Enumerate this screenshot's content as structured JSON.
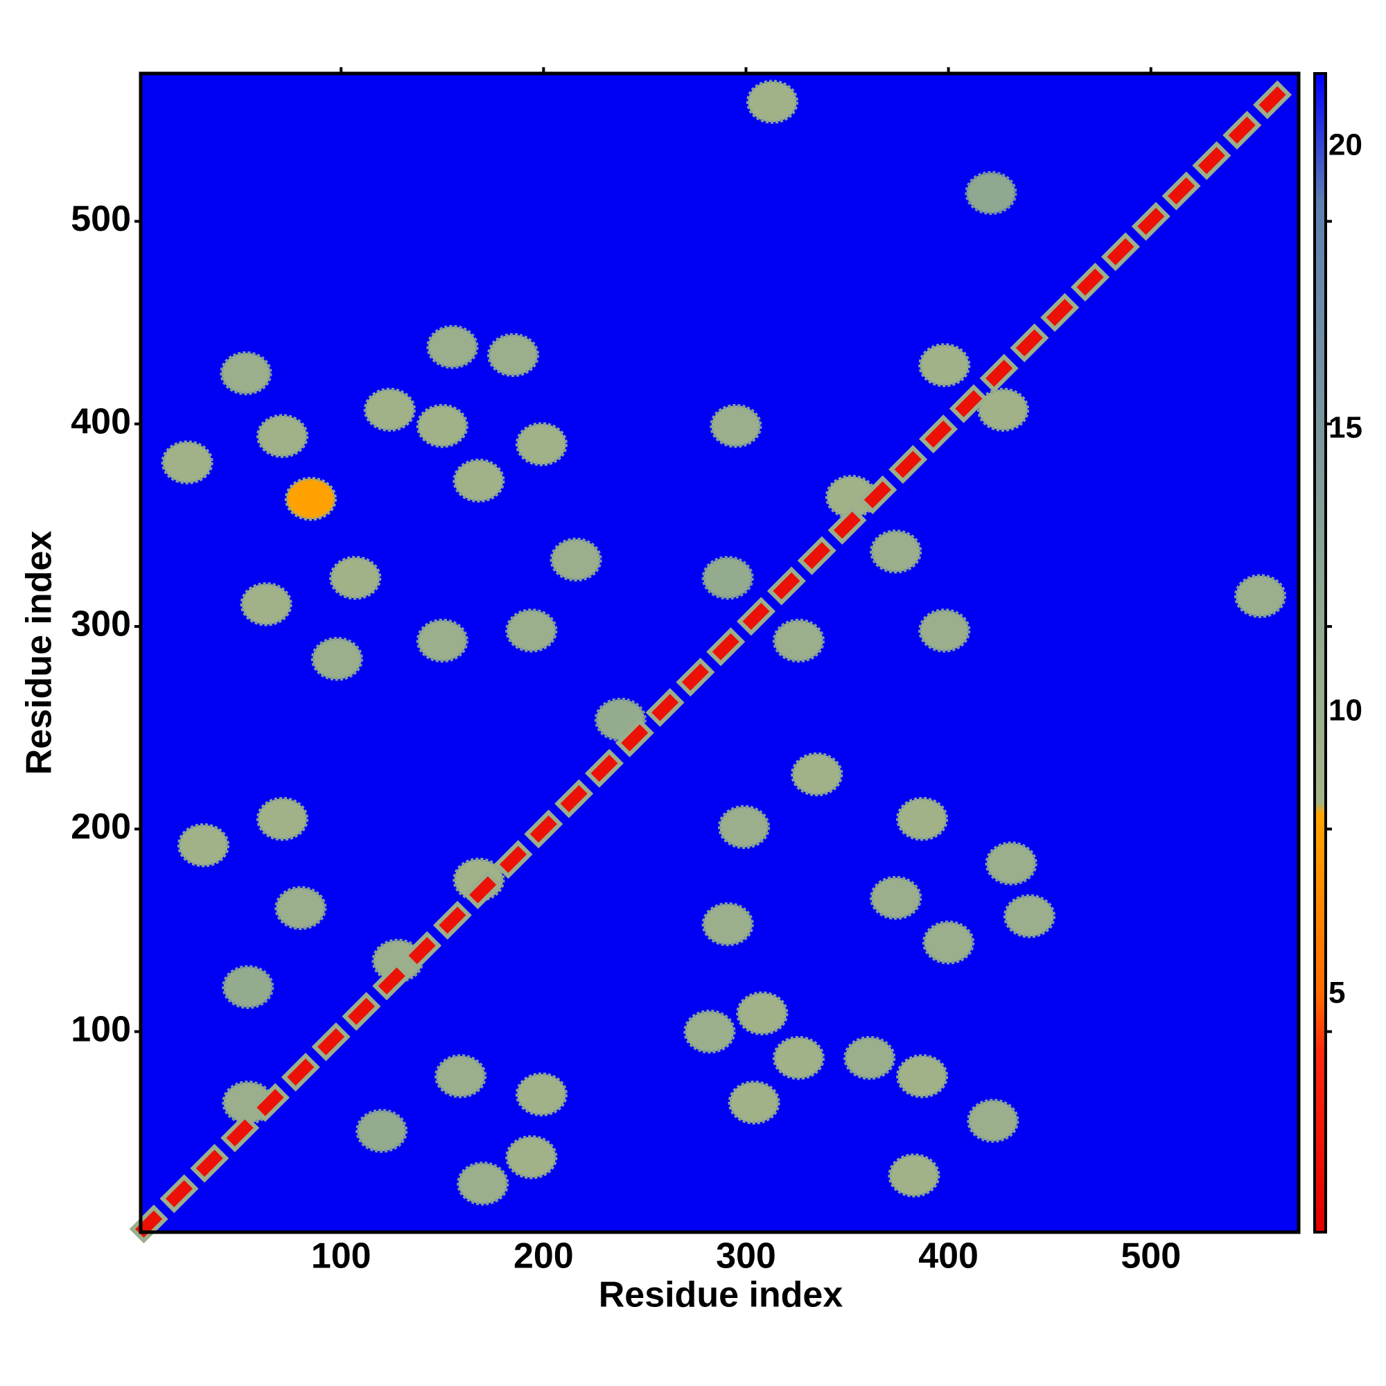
{
  "chart_data": {
    "type": "heatmap",
    "x_label": "Residue index",
    "y_label": "Residue index",
    "xlim": [
      1,
      573
    ],
    "ylim": [
      1,
      573
    ],
    "xticks": [
      100,
      200,
      300,
      400,
      500
    ],
    "yticks": [
      100,
      200,
      300,
      400,
      500
    ],
    "background": "#0000f5",
    "clim": [
      0.8,
      21.3
    ],
    "colorbar_ticks": [
      5,
      10,
      15,
      20
    ],
    "colorscale": [
      [
        0.8,
        "#e00000"
      ],
      [
        4,
        "#ff2a10"
      ],
      [
        5,
        "#ff6a00"
      ],
      [
        8.2,
        "#ffa500"
      ],
      [
        8.4,
        "#a4b488"
      ],
      [
        12,
        "#8fa890"
      ],
      [
        19,
        "#5f80b0"
      ],
      [
        21.3,
        "#0000ff"
      ]
    ],
    "x": [
      313,
      421,
      24,
      53,
      71,
      85,
      63,
      107,
      98,
      150,
      124,
      155,
      185,
      150,
      168,
      199,
      216,
      194,
      295,
      398,
      427,
      352,
      374,
      291,
      326,
      398,
      554,
      238,
      335,
      387,
      299,
      431,
      440,
      400,
      374,
      291,
      32,
      71,
      80,
      54,
      128,
      168,
      308,
      282,
      326,
      304,
      361,
      387,
      422,
      383,
      199,
      159,
      194,
      170,
      120,
      54,
      5,
      20,
      35,
      50,
      65,
      80,
      95,
      110,
      125,
      140,
      155,
      170,
      185,
      200,
      215,
      230,
      245,
      260,
      275,
      290,
      305,
      320,
      335,
      350,
      365,
      380,
      395,
      410,
      425,
      440,
      455,
      470,
      485,
      500,
      515,
      530,
      545,
      560
    ],
    "y": [
      559,
      514,
      381,
      425,
      394,
      363,
      311,
      324,
      284,
      293,
      407,
      438,
      434,
      399,
      372,
      390,
      333,
      298,
      399,
      429,
      407,
      364,
      337,
      324,
      293,
      298,
      315,
      254,
      227,
      205,
      201,
      183,
      157,
      144,
      166,
      153,
      192,
      205,
      161,
      122,
      135,
      175,
      109,
      100,
      87,
      65,
      87,
      78,
      56,
      29,
      69,
      78,
      38,
      25,
      51,
      65,
      5,
      20,
      35,
      50,
      65,
      80,
      95,
      110,
      125,
      140,
      155,
      170,
      185,
      200,
      215,
      230,
      245,
      260,
      275,
      290,
      305,
      320,
      335,
      350,
      365,
      380,
      395,
      410,
      425,
      440,
      455,
      470,
      485,
      500,
      515,
      530,
      545,
      560
    ],
    "values": [
      9,
      12,
      9,
      10,
      9,
      8,
      9,
      9,
      10,
      10,
      9,
      10,
      10,
      9,
      9,
      9,
      10,
      10,
      10,
      9,
      9,
      9,
      10,
      11,
      10,
      10,
      10,
      11,
      9,
      9,
      10,
      10,
      10,
      10,
      10,
      10,
      9,
      9,
      10,
      11,
      10,
      9,
      9,
      10,
      9,
      9,
      10,
      9,
      10,
      9,
      9,
      10,
      9,
      10,
      11,
      10,
      2,
      2,
      2,
      2,
      2,
      2,
      2,
      2,
      2,
      2,
      2,
      2,
      2,
      2,
      2,
      2,
      2,
      2,
      2,
      2,
      2,
      2,
      2,
      2,
      2,
      2,
      2,
      2,
      2,
      2,
      2,
      2,
      2,
      2,
      2,
      2,
      2,
      2
    ]
  }
}
